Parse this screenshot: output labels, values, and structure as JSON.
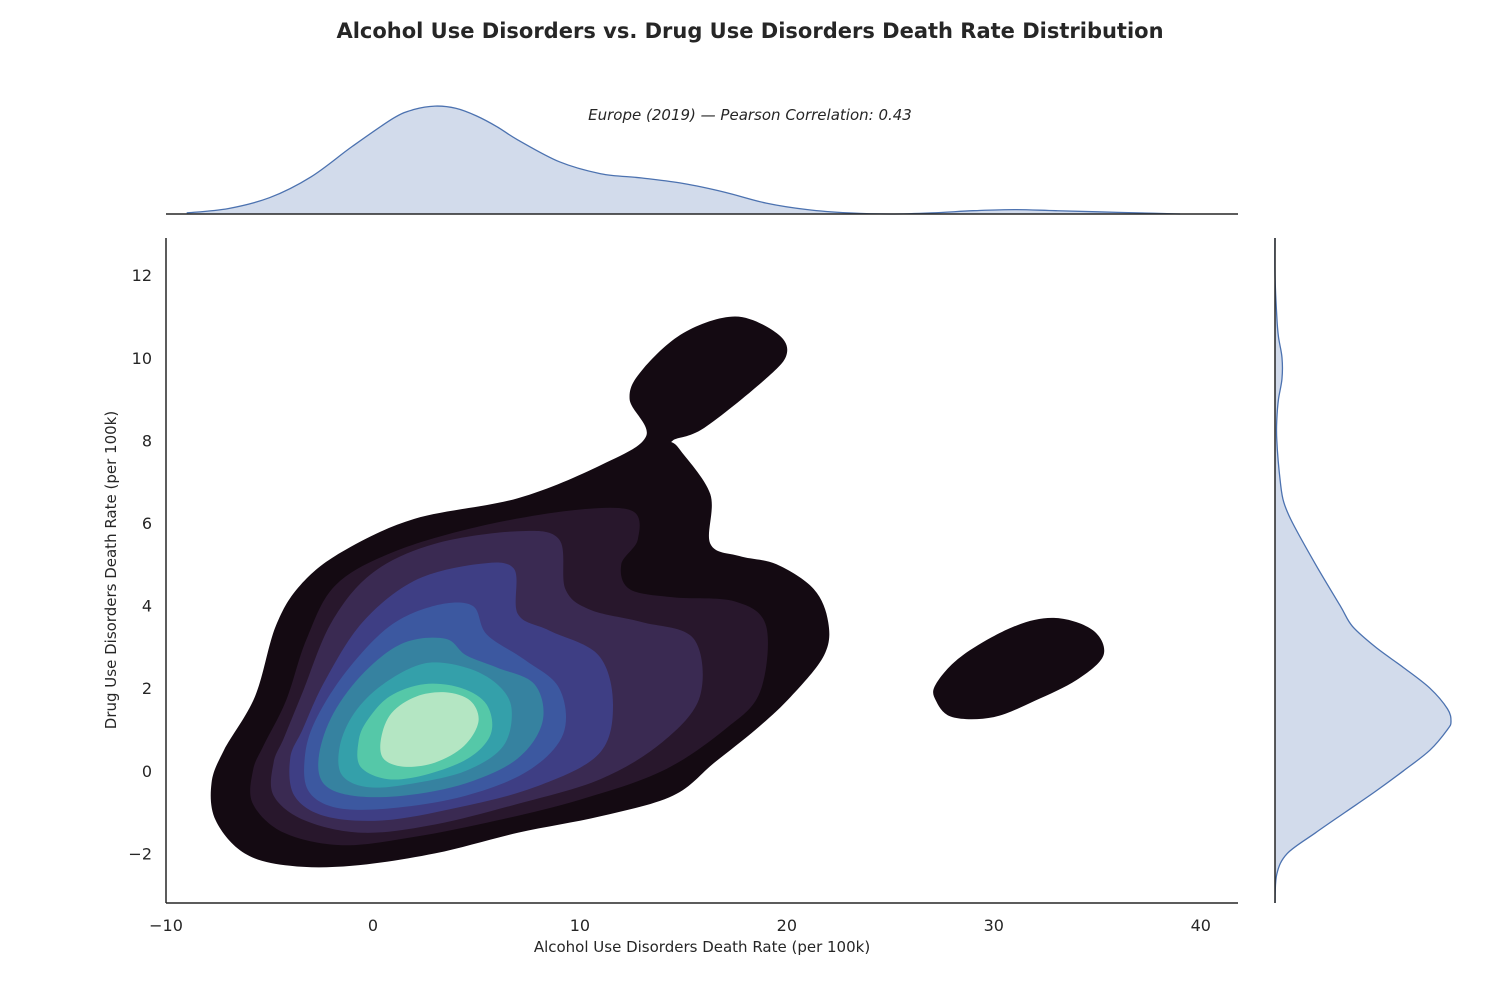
{
  "chart_data": {
    "type": "kde-joint",
    "title": "Alcohol Use Disorders vs. Drug Use Disorders Death Rate Distribution",
    "subtitle": "Europe (2019) — Pearson Correlation: 0.43",
    "xlabel": "Alcohol Use Disorders Death Rate (per 100k)",
    "ylabel": "Drug Use Disorders Death Rate (per 100k)",
    "xlim": [
      -10,
      41.8
    ],
    "ylim": [
      -3.2,
      12.9
    ],
    "xticks": [
      -10,
      0,
      10,
      20,
      30,
      40
    ],
    "yticks": [
      -2,
      0,
      2,
      4,
      6,
      8,
      10,
      12
    ],
    "xtick_labels": [
      "−10",
      "0",
      "10",
      "20",
      "30",
      "40"
    ],
    "ytick_labels": [
      "−2",
      "0",
      "2",
      "4",
      "6",
      "8",
      "10",
      "12"
    ],
    "grid": false,
    "kde_colors": [
      "#140a12",
      "#28172c",
      "#3a2a52",
      "#3e3e84",
      "#3c58a0",
      "#3682a0",
      "#34a0aa",
      "#55c8a8",
      "#b4e6c3"
    ],
    "marginal_color": "#4c72b0",
    "marginal_fill": "#d2dbeb",
    "joint_kde_levels": [
      {
        "level": 1,
        "shapes": [
          [
            [
              -7.8,
              -0.3
            ],
            [
              -7.6,
              -1.2
            ],
            [
              -6.2,
              -2.0
            ],
            [
              -4.0,
              -2.3
            ],
            [
              -1.0,
              -2.3
            ],
            [
              3.0,
              -2.0
            ],
            [
              7.0,
              -1.5
            ],
            [
              11.0,
              -1.1
            ],
            [
              14.5,
              -0.6
            ],
            [
              16.5,
              0.2
            ],
            [
              18.5,
              1.0
            ],
            [
              20.2,
              1.8
            ],
            [
              21.8,
              2.8
            ],
            [
              22.0,
              3.6
            ],
            [
              21.3,
              4.4
            ],
            [
              19.5,
              5.0
            ],
            [
              17.7,
              5.2
            ],
            [
              16.3,
              5.5
            ],
            [
              16.3,
              6.7
            ],
            [
              14.8,
              7.8
            ],
            [
              14.5,
              8.0
            ],
            [
              16.0,
              8.3
            ],
            [
              19.0,
              9.5
            ],
            [
              20.0,
              10.1
            ],
            [
              19.5,
              10.6
            ],
            [
              17.5,
              11.0
            ],
            [
              15.0,
              10.6
            ],
            [
              13.0,
              9.7
            ],
            [
              12.4,
              9.0
            ],
            [
              13.2,
              8.1
            ],
            [
              11.0,
              7.4
            ],
            [
              7.0,
              6.6
            ],
            [
              2.0,
              6.1
            ],
            [
              -1.5,
              5.3
            ],
            [
              -3.5,
              4.5
            ],
            [
              -4.7,
              3.5
            ],
            [
              -5.7,
              1.8
            ],
            [
              -7.2,
              0.5
            ]
          ],
          [
            [
              27.2,
              2.1
            ],
            [
              28.5,
              2.8
            ],
            [
              31.0,
              3.5
            ],
            [
              33.0,
              3.7
            ],
            [
              34.8,
              3.4
            ],
            [
              35.3,
              2.8
            ],
            [
              34.0,
              2.2
            ],
            [
              32.0,
              1.7
            ],
            [
              30.0,
              1.3
            ],
            [
              28.0,
              1.3
            ],
            [
              27.2,
              1.7
            ]
          ]
        ]
      },
      {
        "level": 2,
        "shapes": [
          [
            [
              -5.8,
              0.0
            ],
            [
              -5.8,
              -0.8
            ],
            [
              -4.3,
              -1.5
            ],
            [
              -1.5,
              -1.8
            ],
            [
              2.0,
              -1.6
            ],
            [
              6.0,
              -1.2
            ],
            [
              10.0,
              -0.7
            ],
            [
              14.0,
              0.0
            ],
            [
              17.0,
              1.0
            ],
            [
              18.7,
              1.9
            ],
            [
              19.0,
              3.5
            ],
            [
              17.5,
              4.1
            ],
            [
              14.5,
              4.2
            ],
            [
              12.4,
              4.4
            ],
            [
              12.0,
              5.0
            ],
            [
              12.8,
              5.6
            ],
            [
              12.5,
              6.3
            ],
            [
              9.5,
              6.3
            ],
            [
              5.0,
              5.9
            ],
            [
              1.0,
              5.3
            ],
            [
              -1.8,
              4.5
            ],
            [
              -3.2,
              3.2
            ],
            [
              -4.2,
              1.7
            ],
            [
              -5.3,
              0.6
            ]
          ]
        ]
      },
      {
        "level": 3,
        "shapes": [
          [
            [
              -4.8,
              0.2
            ],
            [
              -4.8,
              -0.6
            ],
            [
              -3.3,
              -1.2
            ],
            [
              -0.5,
              -1.5
            ],
            [
              3.0,
              -1.3
            ],
            [
              7.0,
              -0.8
            ],
            [
              11.0,
              -0.2
            ],
            [
              14.0,
              0.7
            ],
            [
              15.8,
              1.8
            ],
            [
              15.5,
              3.2
            ],
            [
              13.0,
              3.6
            ],
            [
              10.5,
              3.9
            ],
            [
              9.3,
              4.4
            ],
            [
              9.0,
              5.6
            ],
            [
              7.0,
              5.8
            ],
            [
              3.0,
              5.5
            ],
            [
              0.0,
              4.8
            ],
            [
              -2.0,
              3.6
            ],
            [
              -3.4,
              1.9
            ],
            [
              -4.3,
              0.8
            ]
          ]
        ]
      },
      {
        "level": 4,
        "shapes": [
          [
            [
              -4.0,
              0.3
            ],
            [
              -3.8,
              -0.6
            ],
            [
              -2.3,
              -1.1
            ],
            [
              0.5,
              -1.2
            ],
            [
              4.0,
              -0.9
            ],
            [
              7.8,
              -0.4
            ],
            [
              10.9,
              0.4
            ],
            [
              11.6,
              1.6
            ],
            [
              10.9,
              2.8
            ],
            [
              8.5,
              3.4
            ],
            [
              7.0,
              3.8
            ],
            [
              6.8,
              4.9
            ],
            [
              5.0,
              5.0
            ],
            [
              2.0,
              4.6
            ],
            [
              -0.5,
              3.6
            ],
            [
              -2.3,
              2.2
            ],
            [
              -3.4,
              1.0
            ]
          ]
        ]
      },
      {
        "level": 5,
        "shapes": [
          [
            [
              -3.3,
              0.3
            ],
            [
              -3.1,
              -0.5
            ],
            [
              -1.7,
              -0.9
            ],
            [
              1.0,
              -0.9
            ],
            [
              4.5,
              -0.6
            ],
            [
              7.5,
              0.0
            ],
            [
              9.2,
              0.9
            ],
            [
              9.0,
              2.0
            ],
            [
              7.3,
              2.7
            ],
            [
              5.5,
              3.3
            ],
            [
              4.8,
              4.0
            ],
            [
              3.0,
              4.0
            ],
            [
              0.8,
              3.5
            ],
            [
              -1.3,
              2.4
            ],
            [
              -2.8,
              1.2
            ]
          ]
        ]
      },
      {
        "level": 6,
        "shapes": [
          [
            [
              -2.6,
              0.4
            ],
            [
              -2.4,
              -0.3
            ],
            [
              -1.0,
              -0.6
            ],
            [
              1.5,
              -0.6
            ],
            [
              4.5,
              -0.3
            ],
            [
              7.0,
              0.3
            ],
            [
              8.2,
              1.2
            ],
            [
              7.8,
              2.1
            ],
            [
              6.0,
              2.5
            ],
            [
              4.5,
              2.8
            ],
            [
              3.5,
              3.2
            ],
            [
              1.5,
              3.1
            ],
            [
              -0.4,
              2.4
            ],
            [
              -1.9,
              1.4
            ]
          ]
        ]
      },
      {
        "level": 7,
        "shapes": [
          [
            [
              -1.6,
              0.6
            ],
            [
              -1.5,
              -0.1
            ],
            [
              -0.2,
              -0.4
            ],
            [
              2.0,
              -0.3
            ],
            [
              4.5,
              0.0
            ],
            [
              6.3,
              0.6
            ],
            [
              6.7,
              1.5
            ],
            [
              6.0,
              2.1
            ],
            [
              4.5,
              2.5
            ],
            [
              2.5,
              2.6
            ],
            [
              0.5,
              2.1
            ],
            [
              -0.9,
              1.4
            ]
          ]
        ]
      },
      {
        "level": 8,
        "shapes": [
          [
            [
              -0.7,
              0.7
            ],
            [
              -0.6,
              0.1
            ],
            [
              0.7,
              -0.2
            ],
            [
              2.5,
              -0.1
            ],
            [
              4.6,
              0.3
            ],
            [
              5.7,
              0.9
            ],
            [
              5.5,
              1.6
            ],
            [
              4.3,
              2.0
            ],
            [
              2.5,
              2.1
            ],
            [
              0.8,
              1.8
            ],
            [
              -0.3,
              1.2
            ]
          ]
        ]
      },
      {
        "level": 9,
        "shapes": [
          [
            [
              0.4,
              0.8
            ],
            [
              0.5,
              0.3
            ],
            [
              1.5,
              0.1
            ],
            [
              3.0,
              0.2
            ],
            [
              4.4,
              0.6
            ],
            [
              5.1,
              1.2
            ],
            [
              4.7,
              1.7
            ],
            [
              3.5,
              1.9
            ],
            [
              2.1,
              1.8
            ],
            [
              0.9,
              1.4
            ]
          ]
        ]
      }
    ],
    "marginal_x": {
      "x": [
        -9,
        -7,
        -5,
        -3,
        -1,
        1,
        2,
        3,
        4,
        5,
        6,
        7,
        9,
        11,
        13,
        15,
        17,
        19,
        21,
        23,
        25,
        27,
        29,
        31,
        33,
        35,
        37,
        39
      ],
      "density": [
        0.01,
        0.05,
        0.15,
        0.34,
        0.62,
        0.88,
        0.96,
        0.99,
        0.97,
        0.9,
        0.8,
        0.68,
        0.48,
        0.37,
        0.33,
        0.28,
        0.2,
        0.1,
        0.04,
        0.01,
        0.0,
        0.01,
        0.03,
        0.04,
        0.03,
        0.02,
        0.01,
        0.0
      ]
    },
    "marginal_y": {
      "y": [
        -3.2,
        -2.5,
        -2,
        -1.5,
        -1,
        -0.5,
        0,
        0.5,
        1,
        1.2,
        1.5,
        2,
        2.5,
        3,
        3.5,
        4,
        5,
        6,
        6.5,
        7,
        8,
        8.5,
        9,
        9.5,
        10,
        10.5,
        11,
        12,
        12.9
      ],
      "density": [
        0.0,
        0.01,
        0.07,
        0.23,
        0.4,
        0.57,
        0.73,
        0.88,
        0.98,
        1.0,
        0.98,
        0.88,
        0.73,
        0.57,
        0.44,
        0.37,
        0.23,
        0.1,
        0.05,
        0.03,
        0.01,
        0.01,
        0.02,
        0.04,
        0.04,
        0.02,
        0.01,
        0.0,
        0.0
      ]
    }
  }
}
